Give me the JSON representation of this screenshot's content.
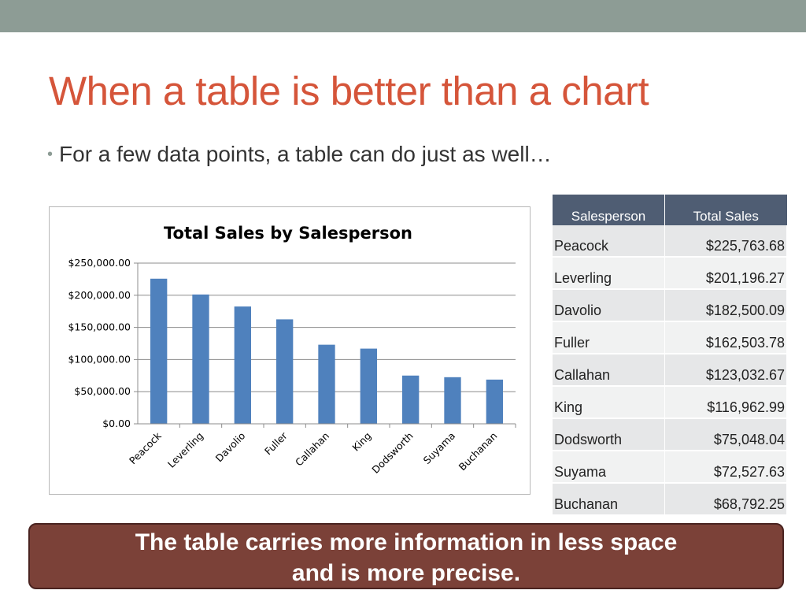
{
  "slide": {
    "title": "When a table is better than a chart",
    "bullet": "For a few data points, a table can do just as well…",
    "callout_line1": "The table carries more information in less space",
    "callout_line2": "and is more precise."
  },
  "colors": {
    "top_bar": "#8d9c95",
    "title": "#d5553a",
    "bar": "#4f81bd",
    "table_header": "#4f5d73",
    "callout": "#7b4138"
  },
  "table": {
    "headers": [
      "Salesperson",
      "Total Sales"
    ],
    "rows": [
      {
        "name": "Peacock",
        "amount": "$225,763.68"
      },
      {
        "name": "Leverling",
        "amount": "$201,196.27"
      },
      {
        "name": "Davolio",
        "amount": "$182,500.09"
      },
      {
        "name": "Fuller",
        "amount": "$162,503.78"
      },
      {
        "name": "Callahan",
        "amount": "$123,032.67"
      },
      {
        "name": "King",
        "amount": "$116,962.99"
      },
      {
        "name": "Dodsworth",
        "amount": "$75,048.04"
      },
      {
        "name": "Suyama",
        "amount": "$72,527.63"
      },
      {
        "name": "Buchanan",
        "amount": "$68,792.25"
      }
    ]
  },
  "chart_data": {
    "type": "bar",
    "title": "Total Sales by Salesperson",
    "xlabel": "",
    "ylabel": "",
    "categories": [
      "Peacock",
      "Leverling",
      "Davolio",
      "Fuller",
      "Callahan",
      "King",
      "Dodsworth",
      "Suyama",
      "Buchanan"
    ],
    "values": [
      225763.68,
      201196.27,
      182500.09,
      162503.78,
      123032.67,
      116962.99,
      75048.04,
      72527.63,
      68792.25
    ],
    "ylim": [
      0,
      250000
    ],
    "yticks": [
      0,
      50000,
      100000,
      150000,
      200000,
      250000
    ],
    "ytick_labels": [
      "$0.00",
      "$50,000.00",
      "$100,000.00",
      "$150,000.00",
      "$200,000.00",
      "$250,000.00"
    ],
    "grid": true,
    "legend": "none"
  }
}
